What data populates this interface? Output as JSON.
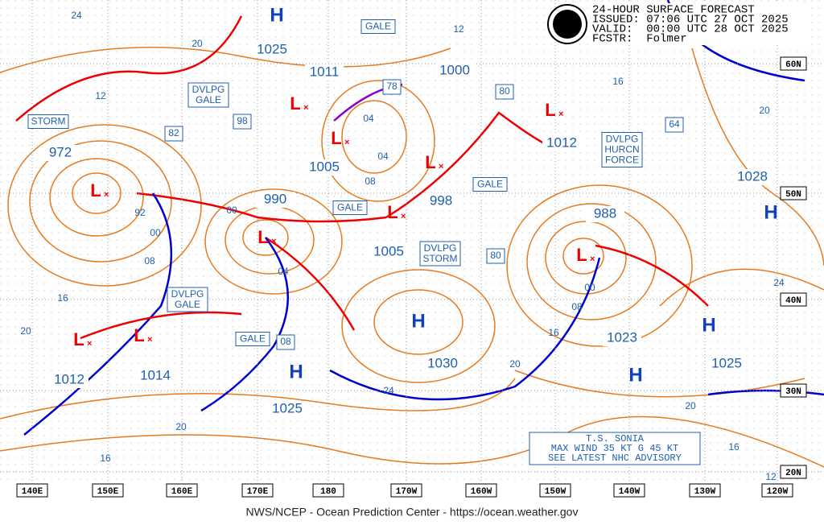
{
  "header": {
    "title": "24-HOUR SURFACE FORECAST",
    "issued": "ISSUED: 07:06 UTC 27 OCT 2025",
    "valid": "VALID:  00:00 UTC 28 OCT 2025",
    "forecaster": "FCSTR:  Folmer"
  },
  "footer": "NWS/NCEP - Ocean Prediction Center - https://ocean.weather.gov",
  "longitudes": [
    "140E",
    "150E",
    "160E",
    "170E",
    "180",
    "170W",
    "160W",
    "150W",
    "140W",
    "130W",
    "120W"
  ],
  "latitudes": [
    "60N",
    "50N",
    "40N",
    "30N",
    "20N"
  ],
  "pressure_labels": [
    "1025",
    "1011",
    "1000",
    "1012",
    "972",
    "1005",
    "990",
    "998",
    "1005",
    "988",
    "1028",
    "1023",
    "1030",
    "1014",
    "1012",
    "1025",
    "1025"
  ],
  "isobar_labels": [
    "24",
    "20",
    "12",
    "12",
    "04",
    "04",
    "08",
    "00",
    "92",
    "00",
    "08",
    "04",
    "16",
    "20",
    "08",
    "00",
    "16",
    "20",
    "24",
    "20",
    "16",
    "16",
    "20",
    "24",
    "20",
    "16",
    "12"
  ],
  "sea_state_labels": [
    "98",
    "82",
    "78",
    "80",
    "64",
    "80",
    "08"
  ],
  "warnings": [
    [
      "STORM"
    ],
    [
      "DVLPG",
      "GALE"
    ],
    [
      "GALE"
    ],
    [
      "GALE"
    ],
    [
      "GALE"
    ],
    [
      "DVLPG",
      "STORM"
    ],
    [
      "DVLPG",
      "GALE"
    ],
    [
      "GALE"
    ],
    [
      "DVLPG",
      "HURCN",
      "FORCE"
    ]
  ],
  "highs": [
    "H",
    "H",
    "H",
    "H",
    "H",
    "H"
  ],
  "lows": [
    "L",
    "L",
    "L",
    "L",
    "L",
    "L",
    "L",
    "L",
    "L",
    "L"
  ],
  "advisory": [
    "T.S. SONIA",
    "MAX WIND 35 KT G 45 KT",
    "SEE LATEST NHC ADVISORY"
  ]
}
